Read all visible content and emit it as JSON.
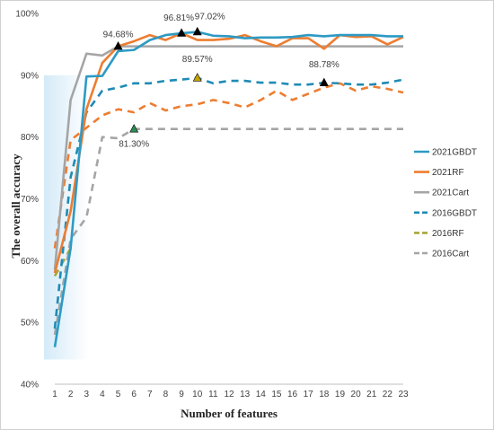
{
  "chart_data": {
    "type": "line",
    "title": "",
    "xlabel": "Number of features",
    "ylabel": "The overall accuracy",
    "x": [
      1,
      2,
      3,
      4,
      5,
      6,
      7,
      8,
      9,
      10,
      11,
      12,
      13,
      14,
      15,
      16,
      17,
      18,
      19,
      20,
      21,
      22,
      23
    ],
    "xlim": [
      1,
      23
    ],
    "ylim": [
      40,
      100
    ],
    "y_ticks": [
      40,
      50,
      60,
      70,
      80,
      90,
      100
    ],
    "y_tick_format": "%",
    "grid": false,
    "legend_position": "right",
    "series": [
      {
        "name": "2021GBDT",
        "color": "#2E9AC4",
        "dash": "solid",
        "values": [
          46.0,
          62.0,
          89.8,
          89.9,
          93.9,
          94.1,
          95.7,
          96.5,
          96.8,
          97.02,
          96.4,
          96.3,
          96.0,
          96.1,
          96.1,
          96.2,
          96.5,
          96.3,
          96.5,
          96.5,
          96.5,
          96.3,
          96.3
        ]
      },
      {
        "name": "2021RF",
        "color": "#ED7D31",
        "dash": "solid",
        "values": [
          58.0,
          68.0,
          84.5,
          92.0,
          94.7,
          95.5,
          96.5,
          95.7,
          96.81,
          95.7,
          95.7,
          95.9,
          96.5,
          95.5,
          94.7,
          96.0,
          96.0,
          94.3,
          96.5,
          96.2,
          96.3,
          95.0,
          96.2
        ]
      },
      {
        "name": "2021Cart",
        "color": "#A5A5A5",
        "dash": "solid",
        "values": [
          58.5,
          86.0,
          93.5,
          93.2,
          94.68,
          94.68,
          94.68,
          94.68,
          94.68,
          94.68,
          94.68,
          94.68,
          94.68,
          94.68,
          94.68,
          94.68,
          94.68,
          94.68,
          94.68,
          94.68,
          94.68,
          94.68,
          94.68
        ]
      },
      {
        "name": "2016GBDT",
        "color": "#1F8BB5",
        "dash": "dash",
        "values": [
          49.0,
          73.5,
          84.0,
          87.5,
          88.0,
          88.7,
          88.7,
          89.1,
          89.3,
          89.57,
          88.7,
          89.1,
          89.1,
          88.8,
          88.8,
          88.5,
          88.5,
          88.78,
          88.7,
          88.5,
          88.5,
          88.8,
          89.3
        ]
      },
      {
        "name": "2016RF",
        "color": "#A8A53A",
        "dash": "dash",
        "values": [
          57.5,
          62.0,
          null,
          null,
          null,
          null,
          null,
          null,
          null,
          null,
          null,
          null,
          null,
          null,
          null,
          null,
          null,
          null,
          null,
          null,
          null,
          null,
          null
        ]
      },
      {
        "name": "2016RF-orange",
        "color": "#ED7D31",
        "dash": "dash",
        "legend": false,
        "values": [
          62.0,
          79.5,
          81.5,
          83.5,
          84.5,
          84.0,
          85.5,
          84.3,
          85.0,
          85.3,
          86.0,
          85.5,
          84.8,
          86.0,
          87.5,
          86.0,
          87.0,
          88.0,
          88.7,
          87.5,
          88.2,
          87.8,
          87.2
        ]
      },
      {
        "name": "2016Cart",
        "color": "#A5A5A5",
        "dash": "dash",
        "values": [
          48.0,
          63.5,
          67.0,
          80.0,
          79.8,
          81.3,
          81.3,
          81.3,
          81.3,
          81.3,
          81.3,
          81.3,
          81.3,
          81.3,
          81.3,
          81.3,
          81.3,
          81.3,
          81.3,
          81.3,
          81.3,
          81.3,
          81.3
        ]
      }
    ],
    "annotations": [
      {
        "x": 5,
        "y": 94.68,
        "label": "94.68%",
        "marker_color": "#000000"
      },
      {
        "x": 9,
        "y": 96.81,
        "label": "96.81%",
        "marker_color": "#000000"
      },
      {
        "x": 10,
        "y": 97.02,
        "label": "97.02%",
        "marker_color": "#000000"
      },
      {
        "x": 10,
        "y": 89.57,
        "label": "89.57%",
        "marker_color": "#C8A000"
      },
      {
        "x": 18,
        "y": 88.78,
        "label": "88.78%",
        "marker_color": "#000000"
      },
      {
        "x": 6,
        "y": 81.3,
        "label": "81.30%",
        "marker_color": "#2E8B57"
      }
    ]
  }
}
